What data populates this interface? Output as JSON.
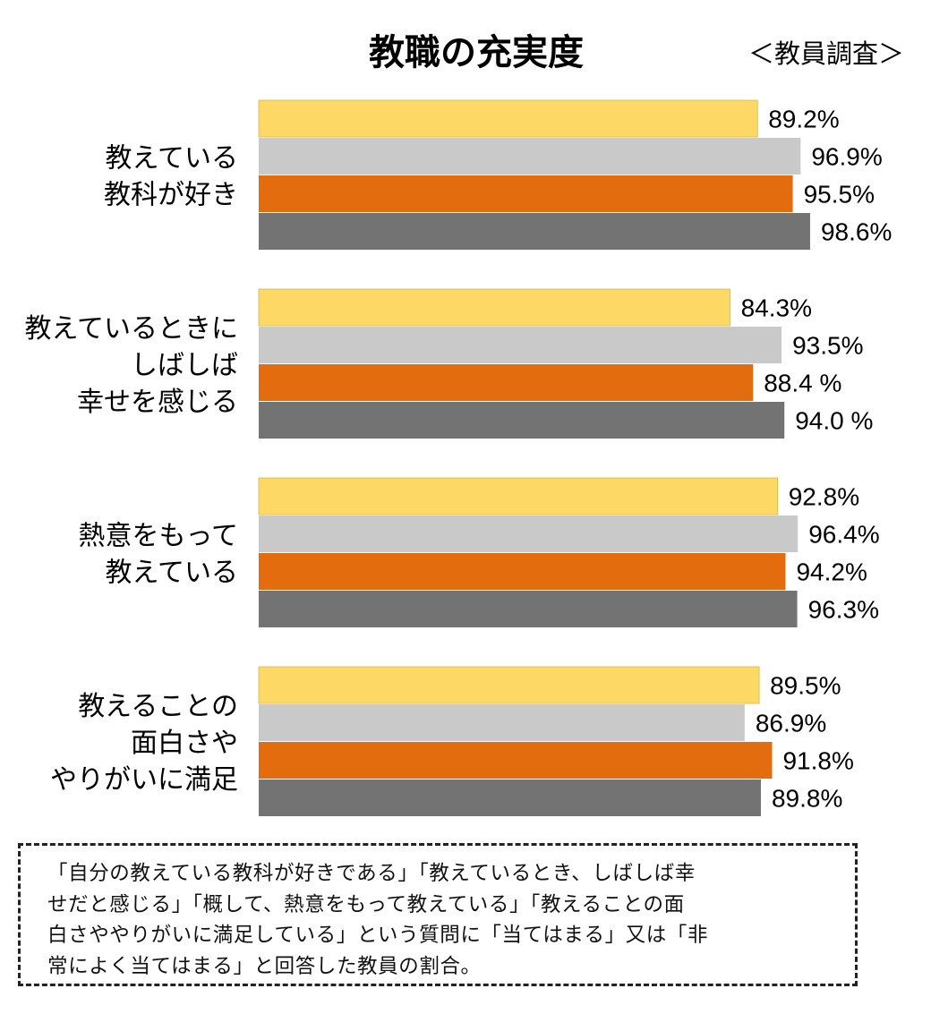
{
  "chart_data": {
    "type": "bar",
    "orientation": "horizontal",
    "title": "教職の充実度",
    "subtitle": "＜教員調査＞",
    "categories": [
      [
        "教えている",
        "教科が好き"
      ],
      [
        "教えているときに",
        "しばしば",
        "幸せを感じる"
      ],
      [
        "熱意をもって",
        "教えている"
      ],
      [
        "教えることの",
        "面白さや",
        "やりがいに満足"
      ]
    ],
    "series": [
      {
        "color": "#FDD865",
        "values": [
          89.2,
          84.3,
          92.8,
          89.5
        ],
        "labels": [
          "89.2%",
          "84.3%",
          "92.8%",
          "89.5%"
        ]
      },
      {
        "color": "#C9C9C9",
        "values": [
          96.9,
          93.5,
          96.4,
          86.9
        ],
        "labels": [
          "96.9%",
          "93.5%",
          "96.4%",
          "86.9%"
        ]
      },
      {
        "color": "#E36C0E",
        "values": [
          95.5,
          88.4,
          94.2,
          91.8
        ],
        "labels": [
          "95.5%",
          "88.4 %",
          "94.2%",
          "91.8%"
        ]
      },
      {
        "color": "#737373",
        "values": [
          98.6,
          94.0,
          96.3,
          89.8
        ],
        "labels": [
          "98.6%",
          "94.0 %",
          "96.3%",
          "89.8%"
        ]
      }
    ],
    "xlim": [
      0,
      100
    ],
    "grid": false,
    "legend": "none",
    "unit": "%"
  },
  "note": {
    "lines": [
      "「自分の教えている教科が好きである」「教えているとき、しばしば幸",
      "せだと感じる」「概して、熱意をもって教えている」「教えることの面",
      "白さややりがいに満足している」という質問に「当てはまる」又は「非",
      "常によく当てはまる」と回答した教員の割合。"
    ]
  }
}
